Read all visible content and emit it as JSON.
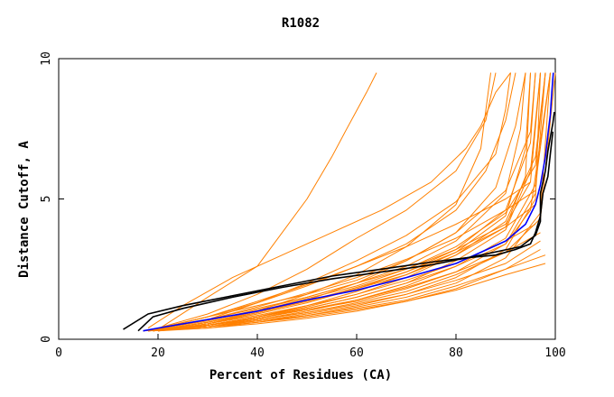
{
  "chart_data": {
    "type": "line",
    "title": "R1082",
    "xlabel": "Percent of Residues (CA)",
    "ylabel": "Distance Cutoff, A",
    "xlim": [
      0,
      100
    ],
    "ylim": [
      0,
      10
    ],
    "x_ticks": [
      "0",
      "20",
      "40",
      "60",
      "80",
      "100"
    ],
    "y_ticks": [
      "0",
      "5",
      "10"
    ],
    "grid": false,
    "legend": "none",
    "colors": {
      "highlight_a": "#0000ff",
      "highlight_b": "#000000",
      "others": "#ff8000"
    },
    "series": [
      {
        "color": "#0000ff",
        "x": [
          17,
          20,
          30,
          40,
          50,
          60,
          70,
          80,
          85,
          90,
          94,
          96,
          97,
          98,
          98.5,
          99,
          99.3,
          99.6
        ],
        "y": [
          0.3,
          0.4,
          0.7,
          1.0,
          1.4,
          1.75,
          2.2,
          2.7,
          3.1,
          3.5,
          4.1,
          4.8,
          5.5,
          6.5,
          7.3,
          8.0,
          8.8,
          9.5
        ]
      },
      {
        "color": "#000000",
        "x": [
          16,
          19,
          25,
          35,
          45,
          55,
          65,
          75,
          85,
          93,
          96,
          97,
          97,
          98,
          98.5,
          99,
          99.5,
          99.8
        ],
        "y": [
          0.3,
          0.8,
          1.1,
          1.5,
          1.85,
          2.15,
          2.4,
          2.65,
          3.0,
          3.3,
          3.7,
          4.2,
          5.2,
          6.0,
          6.7,
          7.2,
          7.7,
          8.1
        ]
      },
      {
        "color": "#000000",
        "x": [
          13,
          18,
          25,
          35,
          45,
          55,
          65,
          75,
          82,
          88,
          92,
          95,
          96,
          97,
          97.5,
          98.5,
          99,
          99.5
        ],
        "y": [
          0.35,
          0.9,
          1.2,
          1.55,
          1.9,
          2.25,
          2.5,
          2.75,
          2.9,
          3.0,
          3.2,
          3.4,
          3.8,
          4.4,
          5.2,
          5.8,
          6.6,
          7.4
        ]
      },
      {
        "color": "#ff8000",
        "x": [
          20,
          30,
          40,
          50,
          55,
          58,
          62,
          64
        ],
        "y": [
          0.35,
          1.5,
          2.6,
          5.0,
          6.5,
          7.5,
          8.8,
          9.5
        ]
      },
      {
        "color": "#ff8000",
        "x": [
          18,
          30,
          40,
          50,
          60,
          70,
          80,
          86,
          88
        ],
        "y": [
          0.3,
          0.9,
          1.6,
          2.5,
          3.6,
          4.6,
          6.0,
          7.8,
          9.5
        ]
      },
      {
        "color": "#ff8000",
        "x": [
          18,
          30,
          40,
          50,
          60,
          70,
          80,
          86,
          90,
          92
        ],
        "y": [
          0.3,
          0.8,
          1.3,
          1.9,
          2.6,
          3.4,
          4.6,
          6.0,
          7.8,
          9.5
        ]
      },
      {
        "color": "#ff8000",
        "x": [
          18,
          30,
          40,
          50,
          60,
          70,
          80,
          85,
          87
        ],
        "y": [
          0.3,
          0.6,
          1.0,
          1.6,
          2.3,
          3.3,
          4.8,
          6.8,
          9.5
        ]
      },
      {
        "color": "#ff8000",
        "x": [
          17,
          30,
          40,
          50,
          60,
          70,
          80,
          90,
          93,
          94
        ],
        "y": [
          0.3,
          0.7,
          1.1,
          1.5,
          2.0,
          2.6,
          3.5,
          5.2,
          7.5,
          9.5
        ]
      },
      {
        "color": "#ff8000",
        "x": [
          19,
          30,
          40,
          50,
          60,
          70,
          80,
          90,
          95,
          96
        ],
        "y": [
          0.3,
          0.55,
          0.9,
          1.3,
          1.8,
          2.4,
          3.2,
          4.6,
          7.0,
          9.5
        ]
      },
      {
        "color": "#ff8000",
        "x": [
          18,
          30,
          40,
          50,
          60,
          70,
          80,
          90,
          96,
          98
        ],
        "y": [
          0.3,
          0.5,
          0.8,
          1.15,
          1.6,
          2.2,
          3.0,
          4.2,
          6.5,
          9.5
        ]
      },
      {
        "color": "#ff8000",
        "x": [
          20,
          30,
          40,
          50,
          60,
          70,
          80,
          90,
          96,
          99
        ],
        "y": [
          0.3,
          0.45,
          0.7,
          1.0,
          1.4,
          1.9,
          2.6,
          3.6,
          5.5,
          9.5
        ]
      },
      {
        "color": "#ff8000",
        "x": [
          19,
          30,
          40,
          50,
          60,
          70,
          80,
          90,
          95,
          97
        ],
        "y": [
          0.3,
          0.5,
          0.75,
          1.1,
          1.5,
          2.0,
          2.8,
          3.9,
          6.0,
          9.5
        ]
      },
      {
        "color": "#ff8000",
        "x": [
          18,
          25,
          35,
          45,
          55,
          65,
          75,
          82,
          85,
          88,
          91
        ],
        "y": [
          0.4,
          1.2,
          2.2,
          3.0,
          3.8,
          4.6,
          5.6,
          6.8,
          7.6,
          8.8,
          9.5
        ]
      },
      {
        "color": "#ff8000",
        "x": [
          19,
          30,
          40,
          50,
          60,
          70,
          80,
          88,
          92,
          94
        ],
        "y": [
          0.35,
          0.8,
          1.2,
          1.6,
          2.1,
          2.8,
          3.8,
          5.4,
          7.6,
          9.5
        ]
      },
      {
        "color": "#ff8000",
        "x": [
          20,
          30,
          40,
          50,
          60,
          70,
          80,
          90,
          94,
          95
        ],
        "y": [
          0.3,
          0.5,
          0.8,
          1.2,
          1.7,
          2.3,
          3.1,
          4.4,
          6.8,
          9.5
        ]
      },
      {
        "color": "#ff8000",
        "x": [
          17,
          30,
          40,
          50,
          60,
          70,
          80,
          90,
          96,
          97
        ],
        "y": [
          0.3,
          0.45,
          0.65,
          0.9,
          1.2,
          1.6,
          2.2,
          3.2,
          5.0,
          9.5
        ]
      },
      {
        "color": "#ff8000",
        "x": [
          20,
          30,
          40,
          50,
          60,
          70,
          80,
          90,
          95,
          96
        ],
        "y": [
          0.3,
          0.55,
          0.95,
          1.4,
          2.0,
          2.8,
          3.8,
          5.3,
          7.4,
          9.5
        ]
      },
      {
        "color": "#ff8000",
        "x": [
          18,
          30,
          40,
          50,
          60,
          70,
          80,
          90,
          97,
          99
        ],
        "y": [
          0.3,
          0.4,
          0.6,
          0.85,
          1.15,
          1.5,
          2.0,
          2.9,
          4.5,
          9.5
        ]
      },
      {
        "color": "#ff8000",
        "x": [
          19,
          30,
          40,
          50,
          60,
          70,
          80,
          90,
          96,
          98
        ],
        "y": [
          0.3,
          0.6,
          1.0,
          1.45,
          1.9,
          2.5,
          3.3,
          4.5,
          6.2,
          9.5
        ]
      },
      {
        "color": "#ff8000",
        "x": [
          18,
          30,
          40,
          50,
          60,
          70,
          80,
          88,
          90,
          91
        ],
        "y": [
          0.3,
          0.7,
          1.3,
          2.0,
          2.8,
          3.7,
          4.9,
          6.6,
          8.2,
          9.5
        ]
      },
      {
        "color": "#ff8000",
        "x": [
          17,
          30,
          40,
          50,
          60,
          70,
          80,
          90,
          95,
          97
        ],
        "y": [
          0.3,
          0.65,
          1.05,
          1.5,
          2.0,
          2.5,
          3.2,
          4.1,
          5.6,
          9.5
        ]
      },
      {
        "color": "#ff8000",
        "x": [
          20,
          30,
          40,
          50,
          60,
          70,
          80,
          90,
          96,
          98
        ],
        "y": [
          0.3,
          0.5,
          0.75,
          1.05,
          1.35,
          1.8,
          2.4,
          3.4,
          5.2,
          9.5
        ]
      },
      {
        "color": "#ff8000",
        "x": [
          19,
          30,
          40,
          50,
          60,
          70,
          80,
          90,
          95,
          99
        ],
        "y": [
          0.3,
          0.5,
          0.8,
          1.1,
          1.5,
          2.0,
          2.6,
          3.4,
          4.6,
          9.5
        ]
      },
      {
        "color": "#ff8000",
        "x": [
          18,
          30,
          40,
          50,
          60,
          70,
          80,
          90,
          97,
          100
        ],
        "y": [
          0.3,
          0.45,
          0.7,
          0.95,
          1.3,
          1.7,
          2.3,
          3.1,
          4.3,
          9.5
        ]
      },
      {
        "color": "#ff8000",
        "x": [
          18,
          30,
          40,
          50,
          60,
          70,
          80,
          90,
          94,
          95
        ],
        "y": [
          0.3,
          0.6,
          0.95,
          1.35,
          1.8,
          2.3,
          3.0,
          4.0,
          5.8,
          9.5
        ]
      },
      {
        "color": "#ff8000",
        "x": [
          20,
          30,
          40,
          50,
          60,
          70,
          80,
          90,
          98
        ],
        "y": [
          0.3,
          0.4,
          0.55,
          0.75,
          1.0,
          1.35,
          1.8,
          2.5,
          3.0
        ]
      },
      {
        "color": "#ff8000",
        "x": [
          19,
          30,
          40,
          50,
          60,
          70,
          80,
          90,
          97
        ],
        "y": [
          0.3,
          0.45,
          0.65,
          0.85,
          1.1,
          1.4,
          1.9,
          2.5,
          3.2
        ]
      },
      {
        "color": "#ff8000",
        "x": [
          18,
          30,
          40,
          50,
          60,
          70,
          80,
          90,
          97
        ],
        "y": [
          0.3,
          0.5,
          0.7,
          0.95,
          1.25,
          1.6,
          2.1,
          2.7,
          3.5
        ]
      },
      {
        "color": "#ff8000",
        "x": [
          20,
          30,
          40,
          50,
          60,
          70,
          80,
          90,
          96
        ],
        "y": [
          0.3,
          0.55,
          0.85,
          1.2,
          1.6,
          2.1,
          2.7,
          3.5,
          4.1
        ]
      },
      {
        "color": "#ff8000",
        "x": [
          19,
          30,
          40,
          50,
          60,
          70,
          80,
          90,
          96
        ],
        "y": [
          0.3,
          0.6,
          0.95,
          1.35,
          1.85,
          2.4,
          3.1,
          4.0,
          4.8
        ]
      },
      {
        "color": "#ff8000",
        "x": [
          17,
          30,
          40,
          50,
          60,
          70,
          80,
          90,
          96
        ],
        "y": [
          0.3,
          0.7,
          1.15,
          1.65,
          2.2,
          2.85,
          3.6,
          4.6,
          5.3
        ]
      },
      {
        "color": "#ff8000",
        "x": [
          18,
          30,
          40,
          50,
          60,
          70,
          80,
          90,
          95
        ],
        "y": [
          0.3,
          0.8,
          1.35,
          1.95,
          2.6,
          3.3,
          4.1,
          5.0,
          5.6
        ]
      },
      {
        "color": "#ff8000",
        "x": [
          18,
          30,
          40,
          50,
          60,
          70,
          80,
          90,
          98
        ],
        "y": [
          0.3,
          0.45,
          0.6,
          0.8,
          1.05,
          1.35,
          1.75,
          2.3,
          2.7
        ]
      },
      {
        "color": "#ff8000",
        "x": [
          20,
          30,
          40,
          50,
          60,
          70,
          80,
          90,
          97
        ],
        "y": [
          0.3,
          0.5,
          0.75,
          1.05,
          1.4,
          1.85,
          2.4,
          3.1,
          3.8
        ]
      }
    ]
  }
}
